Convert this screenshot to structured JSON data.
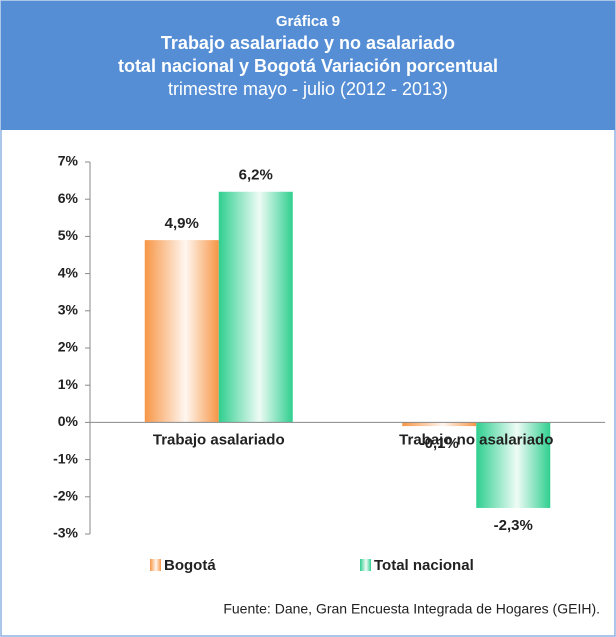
{
  "chart_data": {
    "type": "bar",
    "title": [
      "Gráfica 9",
      "Trabajo asalariado y no asalariado",
      "total nacional y Bogotá Variación porcentual"
    ],
    "subtitle": "trimestre mayo - julio (2012 - 2013)",
    "categories": [
      "Trabajo asalariado",
      "Trabajo no asalariado"
    ],
    "series": [
      {
        "name": "Bogotá",
        "color": "#f79646",
        "values": [
          4.9,
          -0.1
        ],
        "value_labels": [
          "4,9%",
          "-0,1%"
        ]
      },
      {
        "name": "Total nacional",
        "color": "#2fcf8f",
        "values": [
          6.2,
          -2.3
        ],
        "value_labels": [
          "6,2%",
          "-2,3%"
        ]
      }
    ],
    "ylim": [
      -3,
      7
    ],
    "yticks": [
      {
        "value": -3,
        "label": "-3%"
      },
      {
        "value": -2,
        "label": "-2%"
      },
      {
        "value": -1,
        "label": "-1%"
      },
      {
        "value": 0,
        "label": "0%"
      },
      {
        "value": 1,
        "label": "1%"
      },
      {
        "value": 2,
        "label": "2%"
      },
      {
        "value": 3,
        "label": "3%"
      },
      {
        "value": 4,
        "label": "4%"
      },
      {
        "value": 5,
        "label": "5%"
      },
      {
        "value": 6,
        "label": "6%"
      },
      {
        "value": 7,
        "label": "7%"
      }
    ],
    "legend": "bottom",
    "source": "Fuente: Dane, Gran Encuesta Integrada de Hogares (GEIH)."
  }
}
